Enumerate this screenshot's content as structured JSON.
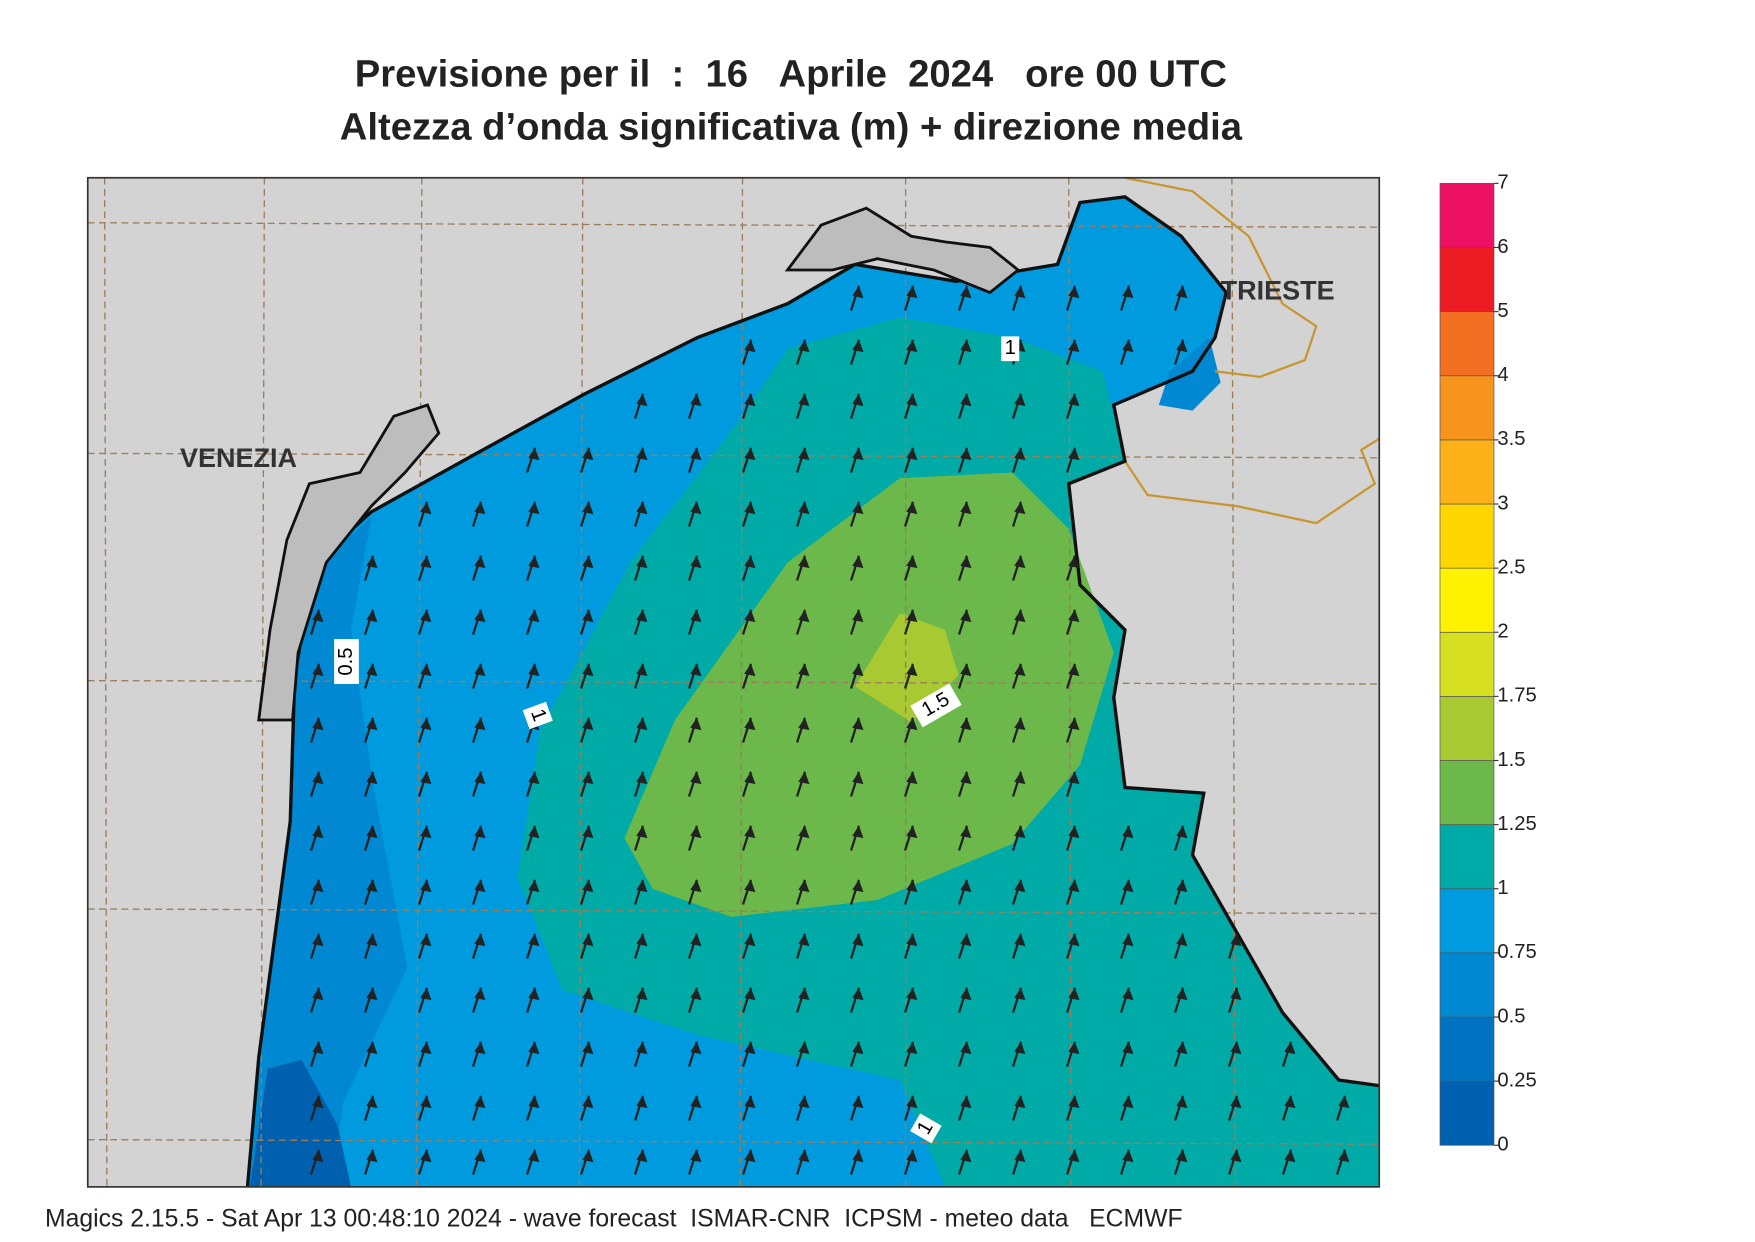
{
  "header": {
    "title": "Previsione per il  :  16   Aprile  2024   ore 00 UTC",
    "subtitle": "Altezza d’onda significativa (m) + direzione media"
  },
  "map": {
    "places": [
      "VENEZIA",
      "TRIESTE"
    ],
    "contour_labels": [
      "1",
      "0.5",
      "1",
      "1.5",
      "1"
    ]
  },
  "legend": {
    "levels": [
      0,
      0.25,
      0.5,
      0.75,
      1,
      1.25,
      1.5,
      1.75,
      2,
      2.5,
      3,
      3.5,
      4,
      5,
      6,
      7
    ],
    "colors": [
      "#0060b0",
      "#0072c2",
      "#0088d2",
      "#009ade",
      "#00aaa6",
      "#6cb84b",
      "#a9c933",
      "#d7df21",
      "#fff200",
      "#ffd600",
      "#fbb117",
      "#f7941d",
      "#f37022",
      "#ed1c24",
      "#ec1163"
    ]
  },
  "footer": "Magics 2.15.5 - Sat Apr 13 00:48:10 2024 - wave forecast  ISMAR-CNR  ICPSM - meteo data   ECMWF"
}
